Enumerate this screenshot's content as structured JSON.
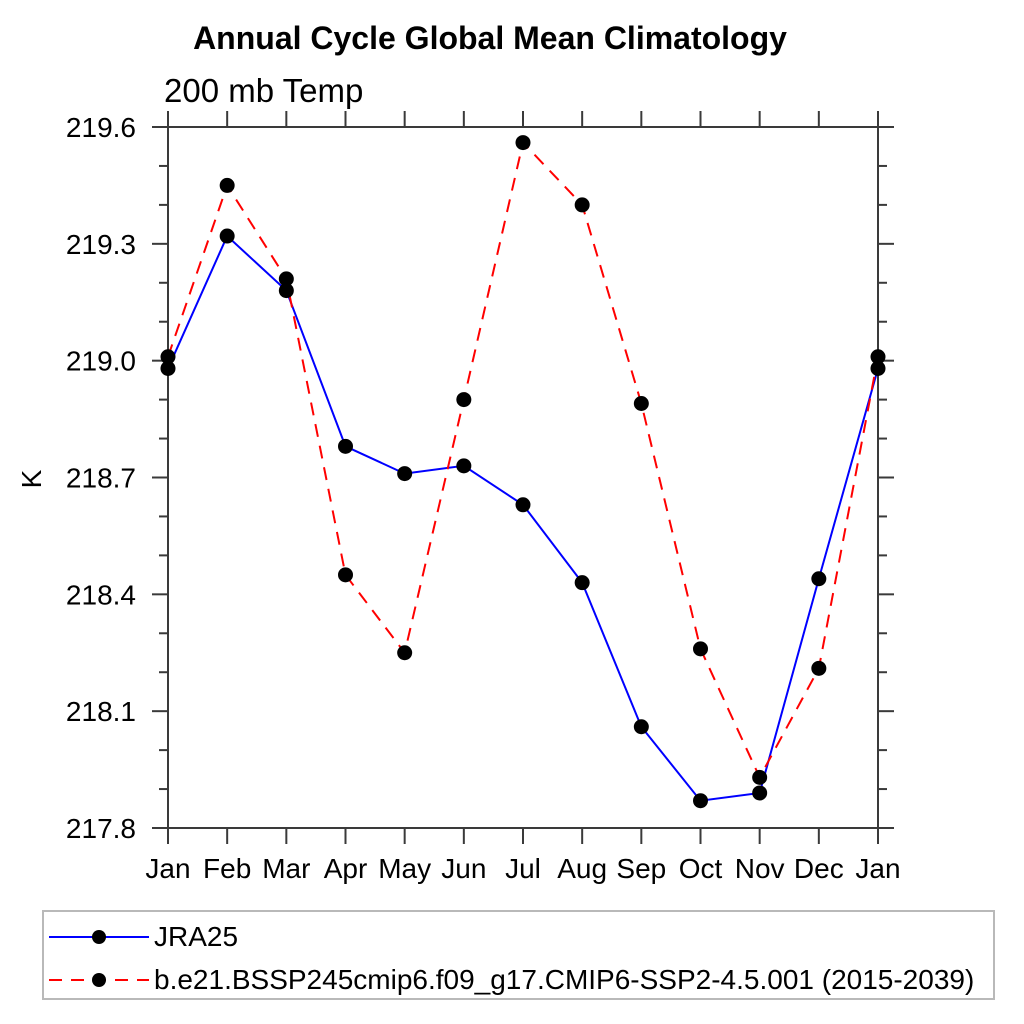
{
  "title": "Annual Cycle Global Mean Climatology",
  "subtitle": "200 mb Temp",
  "chart_data": {
    "type": "line",
    "x_categories": [
      "Jan",
      "Feb",
      "Mar",
      "Apr",
      "May",
      "Jun",
      "Jul",
      "Aug",
      "Sep",
      "Oct",
      "Nov",
      "Dec",
      "Jan"
    ],
    "ylabel": "K",
    "ylim": [
      217.8,
      219.6
    ],
    "ytick_labels": [
      "217.8",
      "218.1",
      "218.4",
      "218.7",
      "219.0",
      "219.3",
      "219.6"
    ],
    "ytick_major_step": 0.3,
    "ytick_minor_step": 0.1,
    "grid": false,
    "legend_position": "bottom-left-box",
    "axis_color": "#3a3a3a",
    "marker_color": "#000000",
    "series": [
      {
        "name": "JRA25",
        "color": "#0000ff",
        "line_style": "solid",
        "marker": "circle",
        "values": [
          218.98,
          219.32,
          219.18,
          218.78,
          218.71,
          218.73,
          218.63,
          218.43,
          218.06,
          217.87,
          217.89,
          218.44,
          218.98
        ]
      },
      {
        "name": "b.e21.BSSP245cmip6.f09_g17.CMIP6-SSP2-4.5.001 (2015-2039)",
        "color": "#ff0000",
        "line_style": "dashed",
        "marker": "circle",
        "values": [
          219.01,
          219.45,
          219.21,
          218.45,
          218.25,
          218.9,
          219.56,
          219.4,
          218.89,
          218.26,
          217.93,
          218.21,
          219.01
        ]
      }
    ]
  }
}
